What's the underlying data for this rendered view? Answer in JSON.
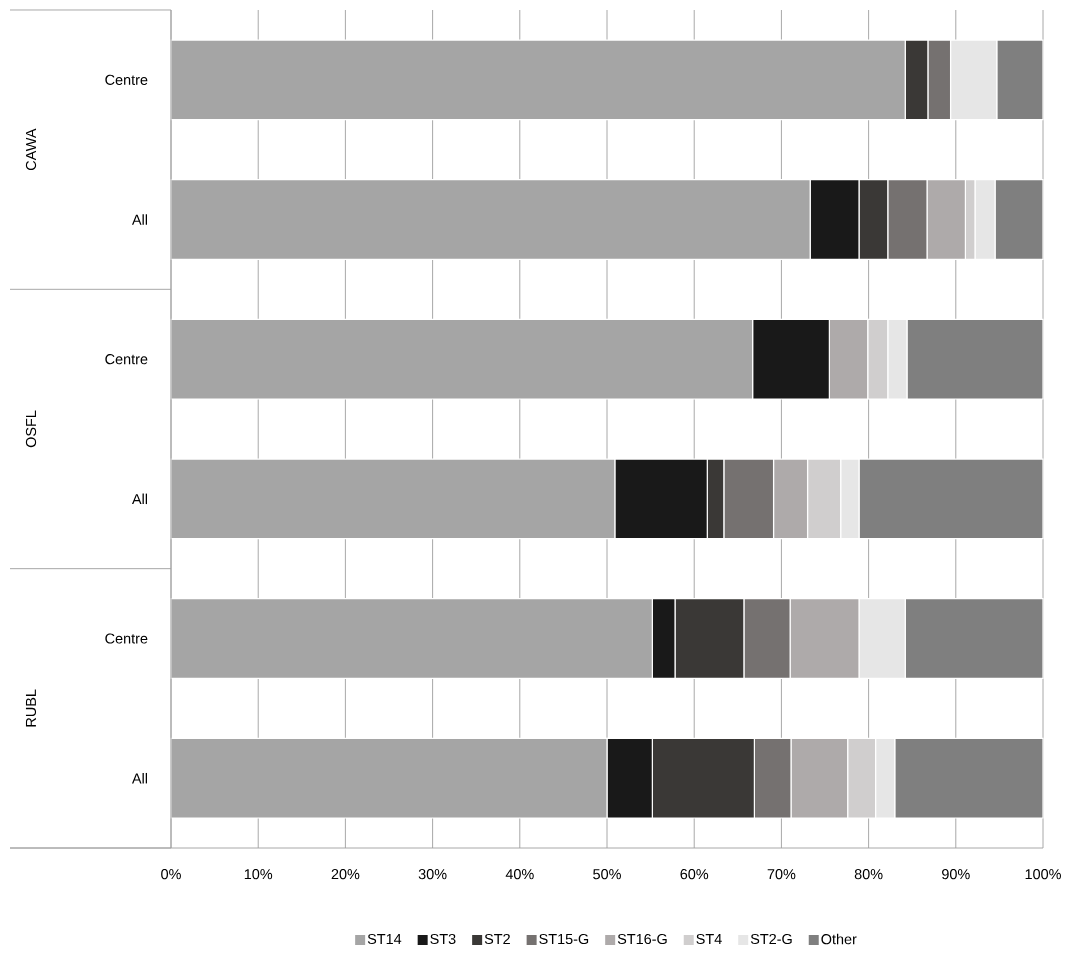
{
  "chart_data": {
    "type": "bar",
    "orientation": "horizontal",
    "stacked": true,
    "categories": [
      "Centre",
      "All",
      "Centre",
      "All",
      "Centre",
      "All"
    ],
    "annotations": [
      "CAWA",
      "OSFL",
      "RUBL"
    ],
    "series": [
      {
        "name": "ST14",
        "color": "#a5a5a5",
        "values": [
          84.2,
          73.3,
          66.7,
          50.9,
          55.2,
          50.0
        ]
      },
      {
        "name": "ST3",
        "color": "#191919",
        "values": [
          0,
          5.6,
          8.8,
          10.6,
          2.6,
          5.2
        ]
      },
      {
        "name": "ST2",
        "color": "#3a3836",
        "values": [
          2.6,
          3.3,
          0,
          1.9,
          7.9,
          11.7
        ]
      },
      {
        "name": "ST15-G",
        "color": "#757170",
        "values": [
          2.6,
          4.5,
          0,
          5.7,
          5.3,
          4.2
        ]
      },
      {
        "name": "ST16-G",
        "color": "#aeaaaa",
        "values": [
          0,
          4.4,
          4.4,
          3.9,
          7.9,
          6.5
        ]
      },
      {
        "name": "ST4",
        "color": "#d0cece",
        "values": [
          0,
          1.1,
          2.3,
          3.8,
          0,
          3.2
        ]
      },
      {
        "name": "ST2-G",
        "color": "#e6e6e6",
        "values": [
          5.3,
          2.3,
          2.2,
          2.1,
          5.3,
          2.2
        ]
      },
      {
        "name": "Other",
        "color": "#7f7f7f",
        "values": [
          5.3,
          5.5,
          15.6,
          21.1,
          15.8,
          17.0
        ]
      }
    ],
    "xlim": [
      0,
      100
    ],
    "xticks": [
      {
        "value": 0,
        "label": "0%"
      },
      {
        "value": 10,
        "label": "10%"
      },
      {
        "value": 20,
        "label": "20%"
      },
      {
        "value": 30,
        "label": "30%"
      },
      {
        "value": 40,
        "label": "40%"
      },
      {
        "value": 50,
        "label": "50%"
      },
      {
        "value": 60,
        "label": "60%"
      },
      {
        "value": 70,
        "label": "70%"
      },
      {
        "value": 80,
        "label": "80%"
      },
      {
        "value": 90,
        "label": "90%"
      },
      {
        "value": 100,
        "label": "100%"
      }
    ],
    "grid": "x",
    "legend": "bottom"
  }
}
